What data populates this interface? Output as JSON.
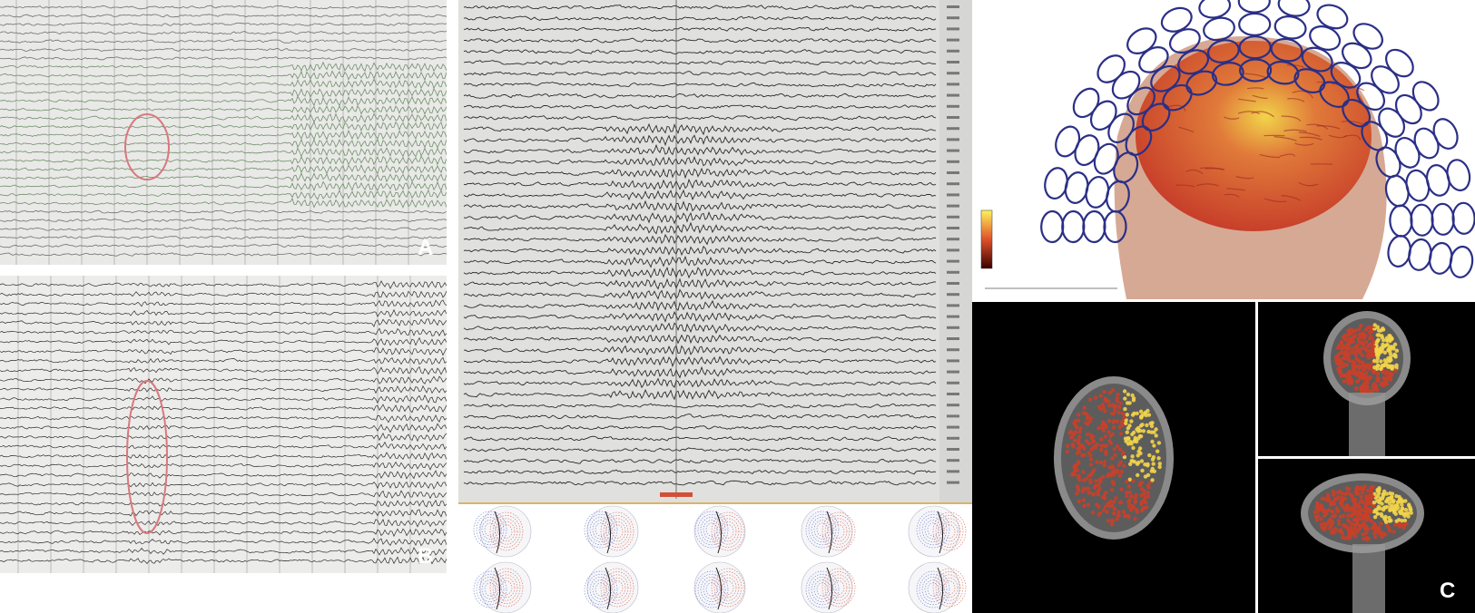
{
  "panel_labels": {
    "a": "A",
    "b": "B",
    "c": "C"
  },
  "colors": {
    "eeg_trace": "#2b2b2b",
    "eeg_trace_light": "#6f6f6f",
    "eeg_trace_green": "#6f8f6a",
    "highlight_ellipse": "#d9787e",
    "cursor_marker": "#d24f36",
    "map_positive": "#d9654e",
    "map_negative": "#6f7fc8",
    "sensor_ring": "#2b2f86",
    "activation_hot": "#f2d44a",
    "activation_warm": "#c8402a"
  },
  "icons": {
    "sensor_helmet": "sensor-ring-icon",
    "colorbar": "colorbar-icon"
  }
}
